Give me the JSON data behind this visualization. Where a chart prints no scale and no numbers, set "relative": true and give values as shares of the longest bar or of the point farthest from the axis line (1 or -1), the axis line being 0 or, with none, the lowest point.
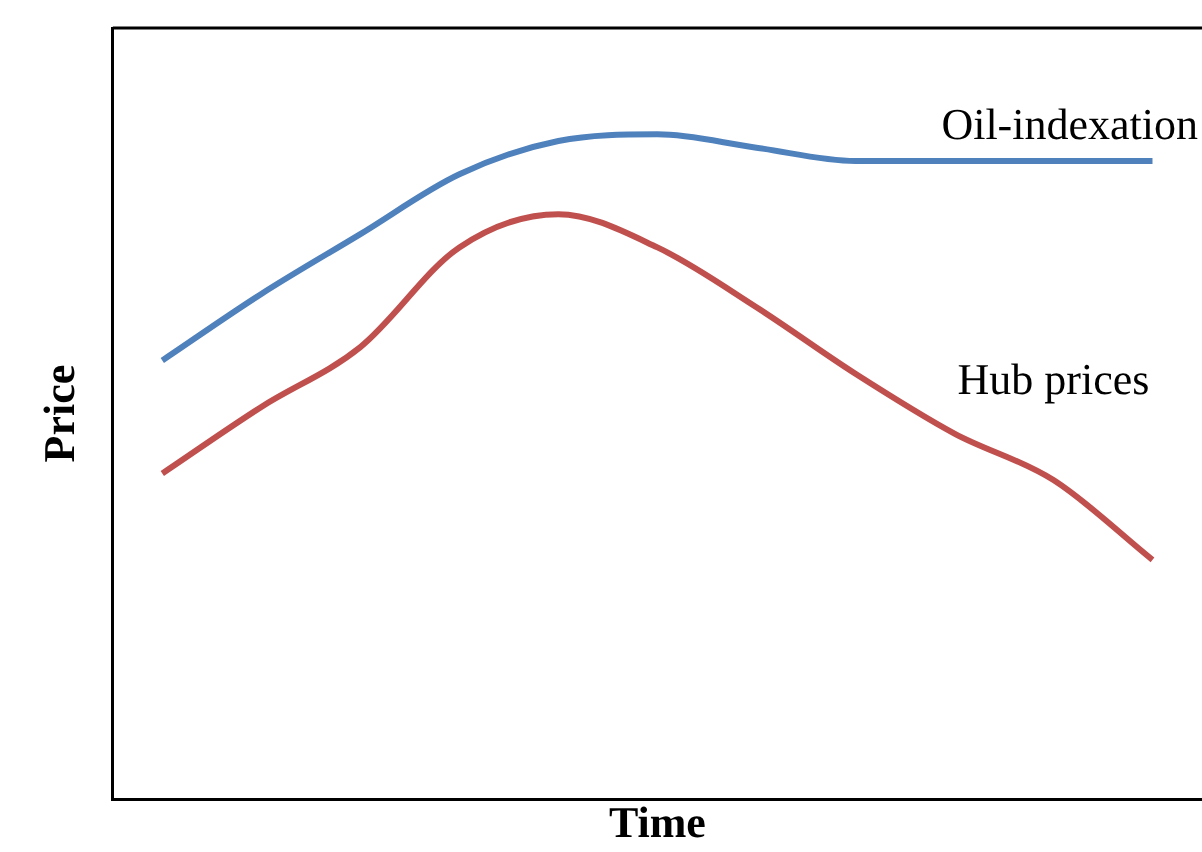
{
  "chart_data": {
    "type": "line",
    "relative": true,
    "xlabel": "Time",
    "ylabel": "Price",
    "categories": [
      null,
      null,
      null,
      null,
      null,
      null,
      null,
      null,
      null,
      null,
      null
    ],
    "legend": false,
    "grid": false,
    "marker": "none",
    "line_style": "solid",
    "series": [
      {
        "name": "Oil-indexation",
        "color": "#4f81bd",
        "values": [
          0.66,
          0.76,
          0.85,
          0.94,
          0.99,
          1.0,
          0.98,
          0.96,
          0.96,
          0.96,
          0.96
        ]
      },
      {
        "name": "Hub prices",
        "color": "#c0504d",
        "values": [
          0.49,
          0.59,
          0.68,
          0.83,
          0.88,
          0.83,
          0.74,
          0.64,
          0.55,
          0.48,
          0.36
        ]
      }
    ]
  }
}
